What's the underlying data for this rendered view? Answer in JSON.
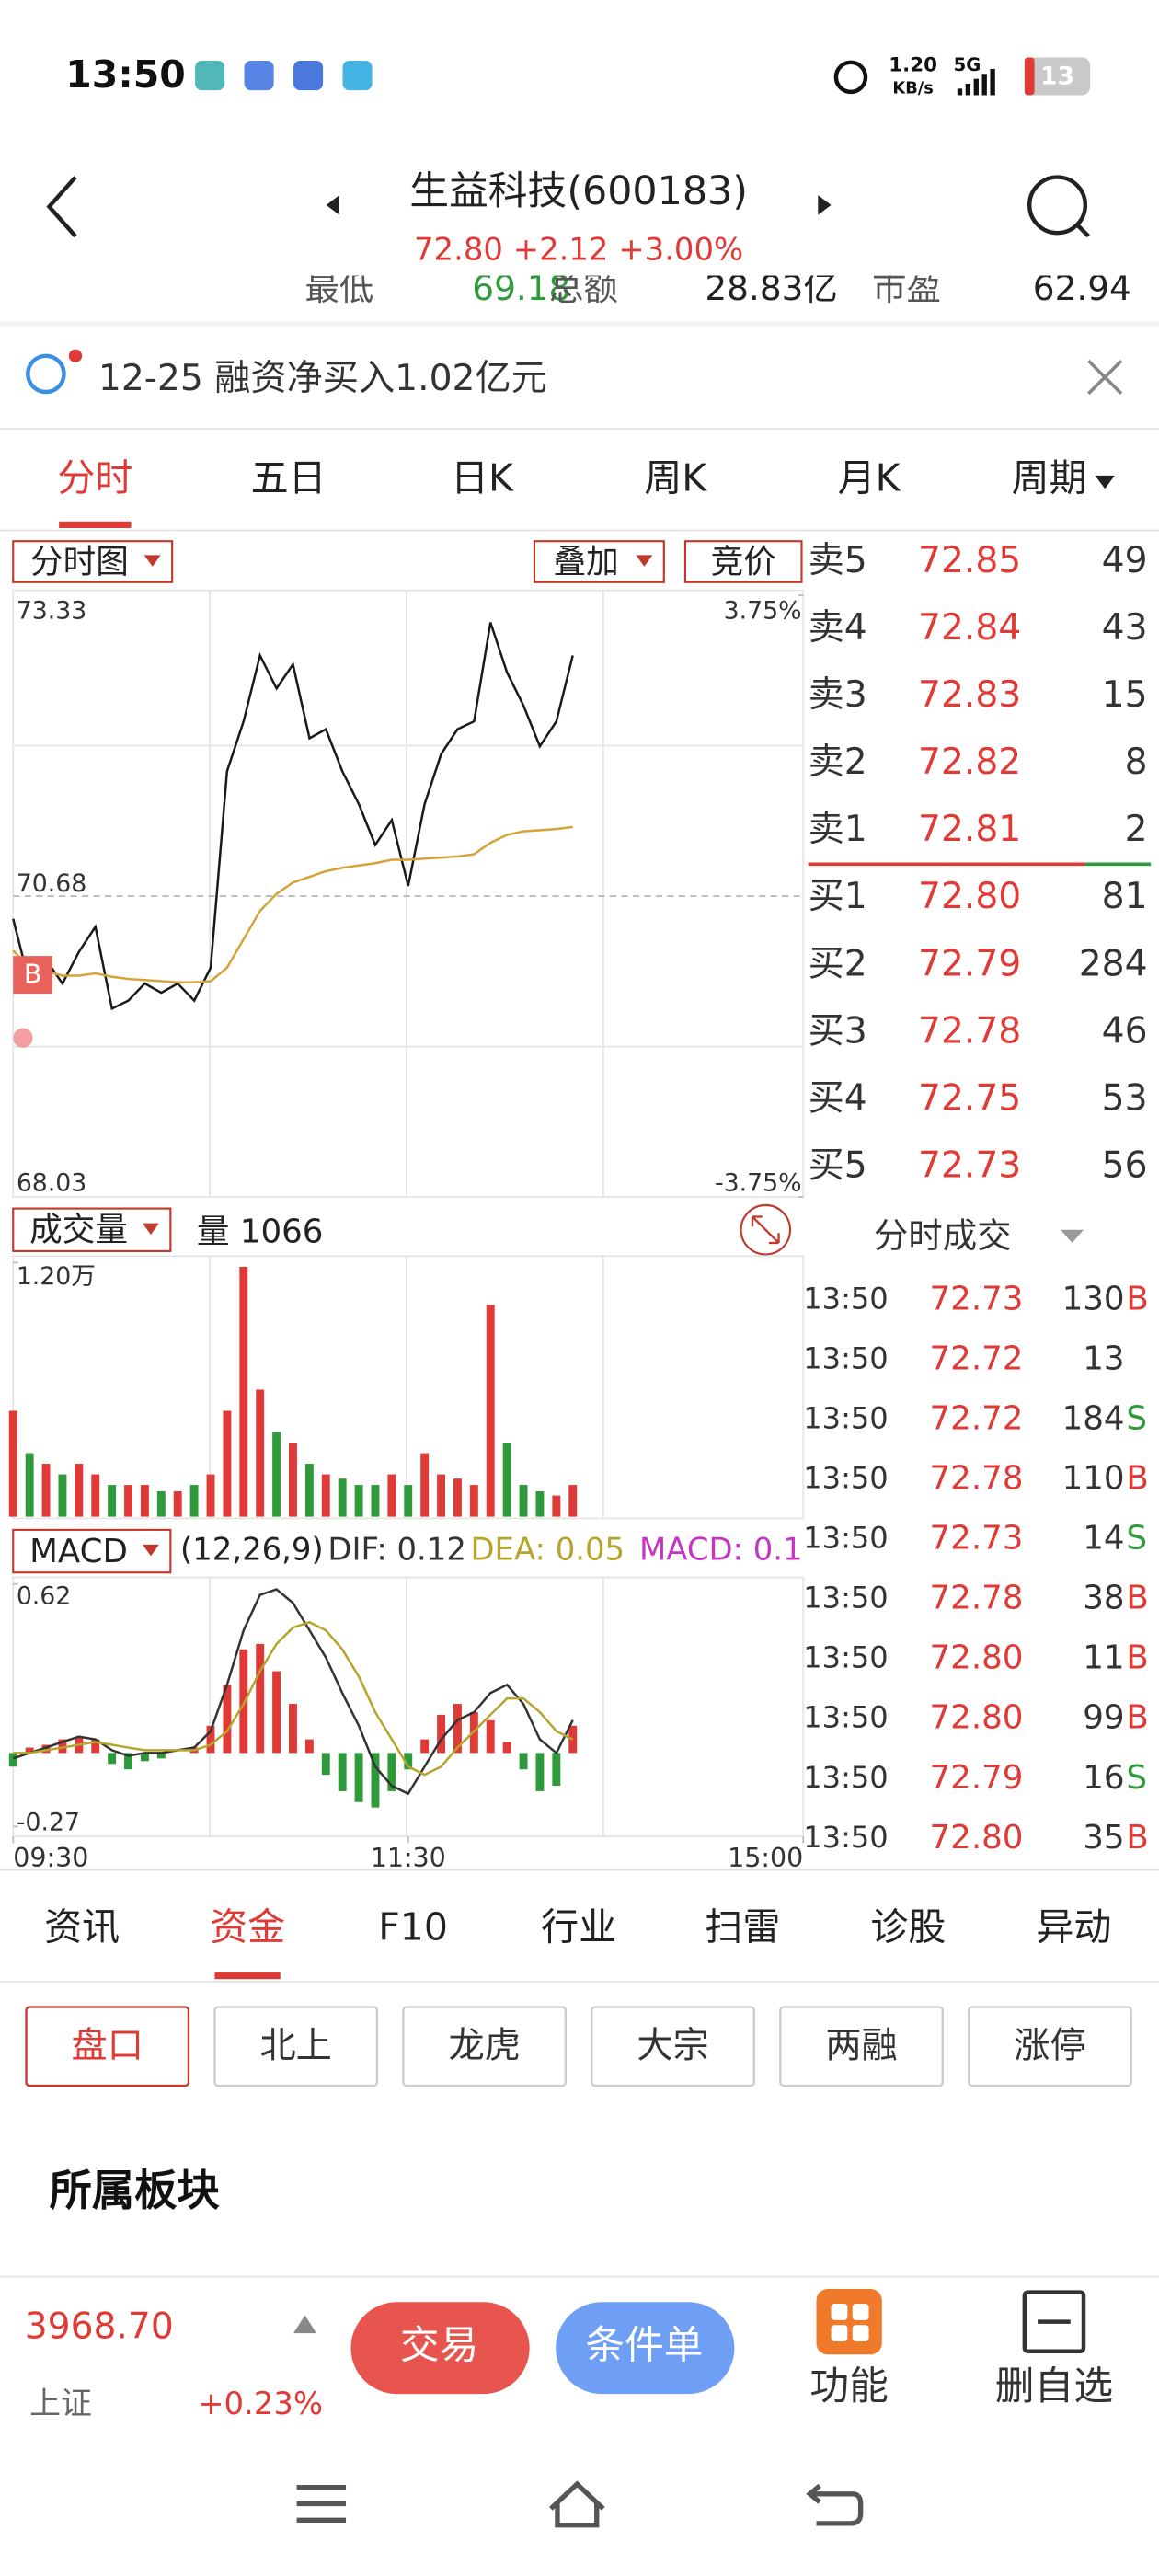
{
  "status_bar": {
    "time": "13:50",
    "speed": "1.20",
    "speed_unit": "KB/s",
    "network": "5G",
    "battery": "13"
  },
  "header": {
    "title": "生益科技(600183)",
    "quote": "72.80 +2.12 +3.00%"
  },
  "partial_row": [
    {
      "label": "最低",
      "value": "69.18"
    },
    {
      "label": "总额",
      "value": "28.83亿"
    },
    {
      "label": "市盈",
      "value": "62.94"
    }
  ],
  "notice": "12-25 融资净买入1.02亿元",
  "period_tabs": [
    "分时",
    "五日",
    "日K",
    "周K",
    "月K",
    "周期"
  ],
  "chart_controls": {
    "chart_menu": "分时图",
    "overlay": "叠加",
    "auction": "竞价",
    "volume_menu": "成交量",
    "volume_label": "量 1066",
    "macd_menu": "MACD",
    "macd_params": "(12,26,9)"
  },
  "price_marker": "B",
  "chart_data": [
    {
      "type": "line",
      "x": [
        "09:30",
        "09:35",
        "09:40",
        "09:45",
        "09:50",
        "09:55",
        "10:00",
        "10:05",
        "10:10",
        "10:15",
        "10:20",
        "10:25",
        "10:30",
        "10:35",
        "10:40",
        "10:45",
        "10:50",
        "10:55",
        "11:00",
        "11:05",
        "11:10",
        "11:15",
        "11:20",
        "11:25",
        "11:30",
        "13:05",
        "13:10",
        "13:15",
        "13:20",
        "13:25",
        "13:30",
        "13:35",
        "13:40",
        "13:45",
        "13:50"
      ],
      "series": [
        {
          "color": "#1a1a1a",
          "values": [
            70.48,
            69.91,
            70.12,
            69.91,
            70.19,
            70.41,
            69.69,
            69.76,
            69.91,
            69.83,
            69.91,
            69.76,
            70.05,
            71.78,
            72.22,
            72.8,
            72.51,
            72.72,
            72.07,
            72.15,
            71.78,
            71.49,
            71.13,
            71.35,
            70.77,
            71.49,
            71.93,
            72.15,
            72.22,
            73.09,
            72.65,
            72.36,
            72.0,
            72.22,
            72.8
          ]
        },
        {
          "color": "#d4a33a",
          "values": [
            70.2,
            70.05,
            70.02,
            69.98,
            69.98,
            70.0,
            69.97,
            69.95,
            69.94,
            69.93,
            69.92,
            69.92,
            69.93,
            70.05,
            70.3,
            70.55,
            70.7,
            70.8,
            70.85,
            70.9,
            70.93,
            70.95,
            70.97,
            71.0,
            71.0,
            71.01,
            71.02,
            71.03,
            71.05,
            71.15,
            71.22,
            71.25,
            71.26,
            71.27,
            71.29
          ]
        }
      ],
      "xlim": [
        "09:30",
        "15:00"
      ],
      "ylim": [
        68.03,
        73.33
      ],
      "yticks": [
        68.03,
        70.68,
        73.33
      ],
      "y2lim": [
        -3.75,
        3.75
      ],
      "y2ticks": [
        {
          "value": -3.75,
          "label": "-3.75%"
        },
        {
          "value": 3.75,
          "label": "3.75%"
        }
      ]
    },
    {
      "type": "bar",
      "x": [
        "09:30",
        "09:35",
        "09:40",
        "09:45",
        "09:50",
        "09:55",
        "10:00",
        "10:05",
        "10:10",
        "10:15",
        "10:20",
        "10:25",
        "10:30",
        "10:35",
        "10:40",
        "10:45",
        "10:50",
        "10:55",
        "11:00",
        "11:05",
        "11:10",
        "11:15",
        "11:20",
        "11:25",
        "11:30",
        "13:05",
        "13:10",
        "13:15",
        "13:20",
        "13:25",
        "13:30",
        "13:35",
        "13:40",
        "13:45",
        "13:50"
      ],
      "values": [
        5000,
        3000,
        2500,
        2000,
        2500,
        2000,
        1500,
        1500,
        1500,
        1200,
        1200,
        1500,
        2000,
        5000,
        11800,
        6000,
        4000,
        3500,
        2500,
        2000,
        1800,
        1500,
        1500,
        2000,
        1500,
        3000,
        2000,
        1800,
        1500,
        10000,
        3500,
        1500,
        1200,
        1000,
        1500
      ],
      "colors": [
        "#e03a36",
        "#2f9a3a",
        "#e03a36",
        "#2f9a3a",
        "#e03a36",
        "#e03a36",
        "#2f9a3a",
        "#e03a36",
        "#e03a36",
        "#2f9a3a",
        "#e03a36",
        "#2f9a3a",
        "#e03a36",
        "#e03a36",
        "#e03a36",
        "#e03a36",
        "#2f9a3a",
        "#e03a36",
        "#2f9a3a",
        "#e03a36",
        "#2f9a3a",
        "#2f9a3a",
        "#2f9a3a",
        "#e03a36",
        "#2f9a3a",
        "#e03a36",
        "#e03a36",
        "#e03a36",
        "#e03a36",
        "#e03a36",
        "#2f9a3a",
        "#2f9a3a",
        "#2f9a3a",
        "#e03a36",
        "#e03a36"
      ],
      "xlim": [
        "09:30",
        "15:00"
      ],
      "ylim": [
        0,
        12000
      ],
      "yticks": [
        {
          "value": 12000,
          "label": "1.20万"
        }
      ]
    },
    {
      "type": "macd",
      "x": [
        "09:30",
        "09:35",
        "09:40",
        "09:45",
        "09:50",
        "09:55",
        "10:00",
        "10:05",
        "10:10",
        "10:15",
        "10:20",
        "10:25",
        "10:30",
        "10:35",
        "10:40",
        "10:45",
        "10:50",
        "10:55",
        "11:00",
        "11:05",
        "11:10",
        "11:15",
        "11:20",
        "11:25",
        "11:30",
        "13:05",
        "13:10",
        "13:15",
        "13:20",
        "13:25",
        "13:30",
        "13:35",
        "13:40",
        "13:45",
        "13:50"
      ],
      "legend": [
        {
          "text": "DIF: 0.12",
          "color": "#333333"
        },
        {
          "text": "DEA: 0.05",
          "color": "#b5a52a"
        },
        {
          "text": "MACD: 0.1",
          "color": "#c236c2"
        }
      ],
      "values": [
        -0.05,
        0.02,
        0.03,
        0.05,
        0.06,
        0.05,
        -0.04,
        -0.06,
        -0.03,
        -0.02,
        0,
        0.02,
        0.1,
        0.25,
        0.38,
        0.4,
        0.3,
        0.18,
        0.05,
        -0.08,
        -0.14,
        -0.18,
        -0.2,
        -0.14,
        -0.06,
        0.05,
        0.14,
        0.18,
        0.15,
        0.12,
        0.04,
        -0.06,
        -0.14,
        -0.12,
        0.1
      ],
      "up_color": "#e03a36",
      "down_color": "#2f9a3a",
      "series": [
        {
          "color": "#333333",
          "values": [
            -0.02,
            0,
            0.02,
            0.04,
            0.06,
            0.05,
            0.01,
            -0.01,
            0,
            0,
            0.01,
            0.02,
            0.08,
            0.25,
            0.45,
            0.58,
            0.6,
            0.55,
            0.45,
            0.35,
            0.22,
            0.1,
            -0.05,
            -0.12,
            -0.15,
            -0.05,
            0.05,
            0.12,
            0.15,
            0.22,
            0.25,
            0.18,
            0.05,
            0.0,
            0.12
          ]
        },
        {
          "color": "#b5a52a",
          "values": [
            0,
            0,
            0.01,
            0.02,
            0.03,
            0.04,
            0.03,
            0.02,
            0.01,
            0.01,
            0.01,
            0.01,
            0.03,
            0.08,
            0.18,
            0.3,
            0.4,
            0.46,
            0.48,
            0.45,
            0.38,
            0.28,
            0.15,
            0.05,
            -0.05,
            -0.08,
            -0.05,
            0.02,
            0.08,
            0.14,
            0.2,
            0.2,
            0.15,
            0.08,
            0.05
          ]
        }
      ],
      "xlim": [
        "09:30",
        "15:00"
      ],
      "xticks": [
        "09:30",
        "11:30",
        "15:00"
      ],
      "ylim": [
        -0.27,
        0.62
      ],
      "yticks": [
        -0.27,
        0.62
      ]
    }
  ],
  "order_book": {
    "asks": [
      {
        "label": "卖5",
        "price": "72.85",
        "volume": "49"
      },
      {
        "label": "卖4",
        "price": "72.84",
        "volume": "43"
      },
      {
        "label": "卖3",
        "price": "72.83",
        "volume": "15"
      },
      {
        "label": "卖2",
        "price": "72.82",
        "volume": "8"
      },
      {
        "label": "卖1",
        "price": "72.81",
        "volume": "2"
      }
    ],
    "bids": [
      {
        "label": "买1",
        "price": "72.80",
        "volume": "81"
      },
      {
        "label": "买2",
        "price": "72.79",
        "volume": "284"
      },
      {
        "label": "买3",
        "price": "72.78",
        "volume": "46"
      },
      {
        "label": "买4",
        "price": "72.75",
        "volume": "53"
      },
      {
        "label": "买5",
        "price": "72.73",
        "volume": "56"
      }
    ]
  },
  "trades_title": "分时成交",
  "trades": [
    {
      "time": "13:50",
      "price": "72.73",
      "volume": "130",
      "side": "B"
    },
    {
      "time": "13:50",
      "price": "72.72",
      "volume": "13"
    },
    {
      "time": "13:50",
      "price": "72.72",
      "volume": "184",
      "side": "S"
    },
    {
      "time": "13:50",
      "price": "72.78",
      "volume": "110",
      "side": "B"
    },
    {
      "time": "13:50",
      "price": "72.73",
      "volume": "14",
      "side": "S"
    },
    {
      "time": "13:50",
      "price": "72.78",
      "volume": "38",
      "side": "B"
    },
    {
      "time": "13:50",
      "price": "72.80",
      "volume": "11",
      "side": "B"
    },
    {
      "time": "13:50",
      "price": "72.80",
      "volume": "99",
      "side": "B"
    },
    {
      "time": "13:50",
      "price": "72.79",
      "volume": "16",
      "side": "S"
    },
    {
      "time": "13:50",
      "price": "72.80",
      "volume": "35",
      "side": "B"
    }
  ],
  "info_tabs": [
    "资讯",
    "资金",
    "F10",
    "行业",
    "扫雷",
    "诊股",
    "异动"
  ],
  "sub_tabs": [
    "盘口",
    "北上",
    "龙虎",
    "大宗",
    "两融",
    "涨停"
  ],
  "section_title": "所属板块",
  "footer": {
    "index_value": "3968.70",
    "index_name": "上证",
    "index_change": "+0.23%",
    "trade": "交易",
    "conditional": "条件单",
    "functions": "功能",
    "remove": "删自选"
  }
}
